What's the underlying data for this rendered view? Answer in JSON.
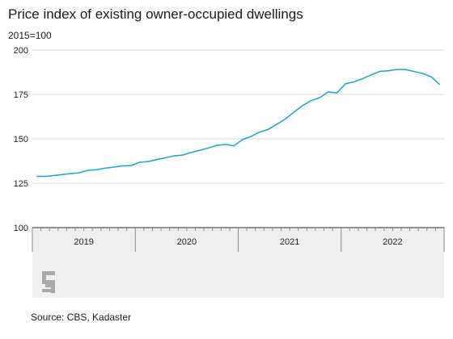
{
  "chart_data": {
    "type": "line",
    "title": "Price index of existing owner-occupied dwellings",
    "subtitle": "2015=100",
    "source": "Source: CBS, Kadaster",
    "ylim": [
      100,
      200
    ],
    "yticks": [
      100,
      125,
      150,
      175,
      200
    ],
    "grid": true,
    "x_categories": [
      "2019",
      "2020",
      "2021",
      "2022"
    ],
    "series": [
      {
        "color": "#2aa6c4",
        "x": [
          "2019-01",
          "2019-02",
          "2019-03",
          "2019-04",
          "2019-05",
          "2019-06",
          "2019-07",
          "2019-08",
          "2019-09",
          "2019-10",
          "2019-11",
          "2019-12",
          "2020-01",
          "2020-02",
          "2020-03",
          "2020-04",
          "2020-05",
          "2020-06",
          "2020-07",
          "2020-08",
          "2020-09",
          "2020-10",
          "2020-11",
          "2020-12",
          "2021-01",
          "2021-02",
          "2021-03",
          "2021-04",
          "2021-05",
          "2021-06",
          "2021-07",
          "2021-08",
          "2021-09",
          "2021-10",
          "2021-11",
          "2021-12",
          "2022-01",
          "2022-02",
          "2022-03",
          "2022-04",
          "2022-05",
          "2022-06",
          "2022-07",
          "2022-08",
          "2022-09",
          "2022-10",
          "2022-11",
          "2022-12"
        ],
        "values": [
          128.9,
          128.8,
          129.3,
          129.9,
          130.4,
          130.9,
          132.3,
          132.6,
          133.5,
          134.1,
          134.8,
          134.9,
          136.8,
          137.2,
          138.3,
          139.3,
          140.4,
          140.8,
          142.3,
          143.5,
          144.8,
          146.3,
          146.8,
          146.1,
          149.6,
          151.3,
          153.8,
          155.3,
          158.2,
          161.2,
          165.0,
          168.7,
          171.5,
          173.2,
          176.4,
          175.8,
          181.0,
          182.1,
          183.9,
          186.0,
          188.0,
          188.3,
          189.1,
          189.0,
          187.9,
          186.8,
          184.9,
          180.5
        ]
      }
    ]
  }
}
